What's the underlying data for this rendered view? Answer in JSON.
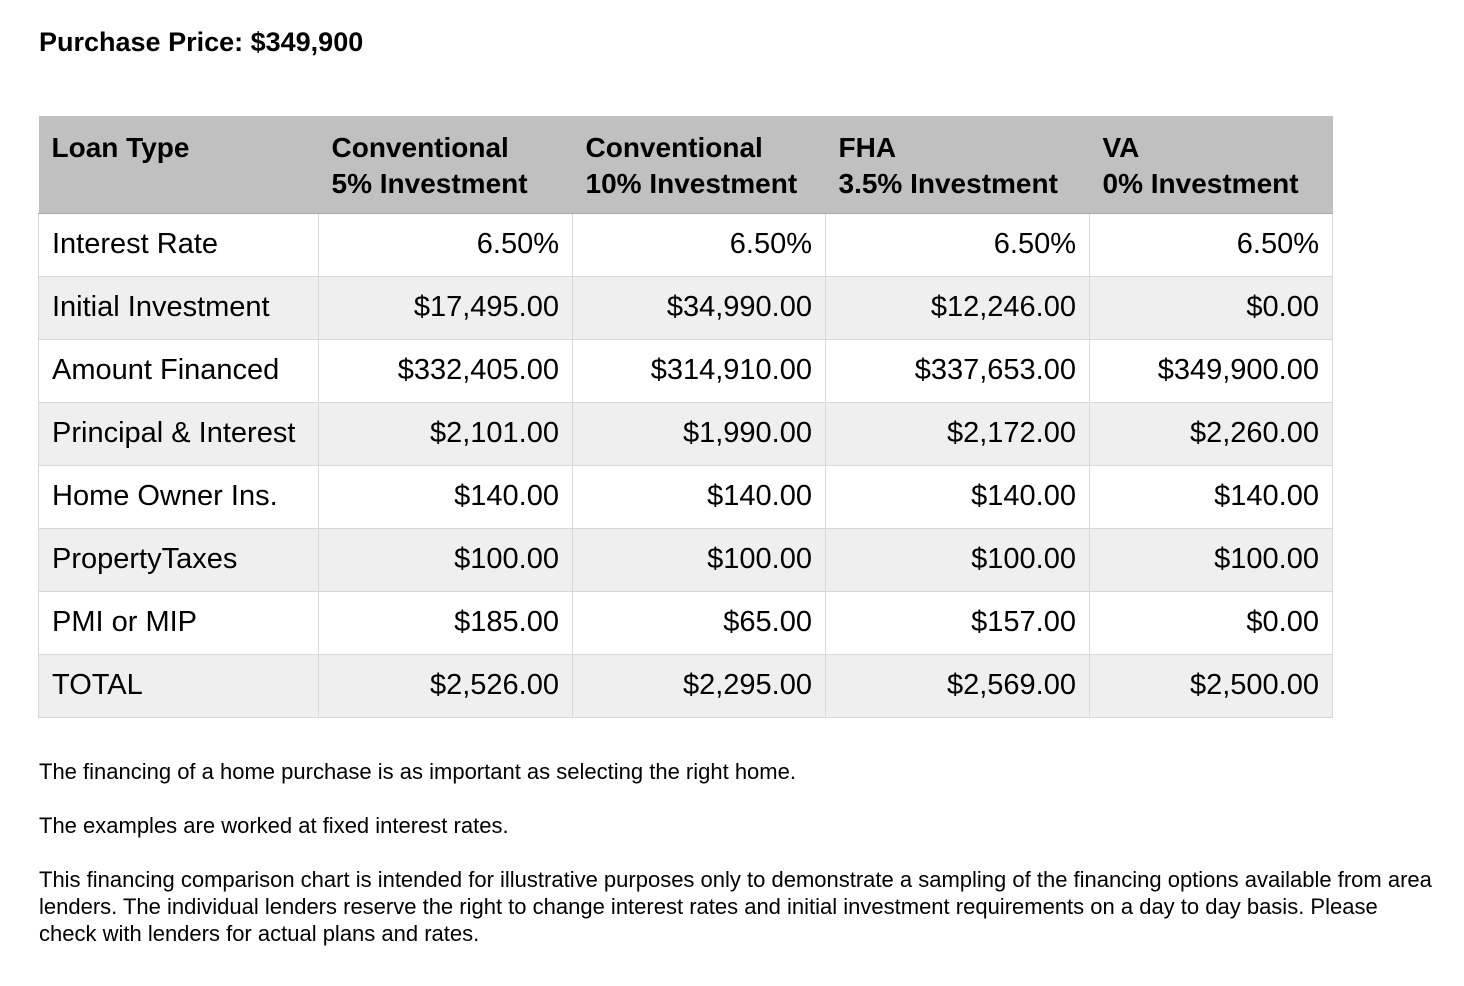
{
  "title": "Purchase Price: $349,900",
  "table": {
    "headers": [
      [
        "Loan Type"
      ],
      [
        "Conventional",
        "5% Investment"
      ],
      [
        "Conventional",
        "10% Investment"
      ],
      [
        "FHA",
        "3.5% Investment"
      ],
      [
        "VA",
        "0% Investment"
      ]
    ],
    "rows": [
      {
        "label": "Interest Rate",
        "values": [
          "6.50%",
          "6.50%",
          "6.50%",
          "6.50%"
        ]
      },
      {
        "label": "Initial Investment",
        "values": [
          "$17,495.00",
          "$34,990.00",
          "$12,246.00",
          "$0.00"
        ]
      },
      {
        "label": "Amount Financed",
        "values": [
          "$332,405.00",
          "$314,910.00",
          "$337,653.00",
          "$349,900.00"
        ]
      },
      {
        "label": "Principal & Interest",
        "values": [
          "$2,101.00",
          "$1,990.00",
          "$2,172.00",
          "$2,260.00"
        ]
      },
      {
        "label": "Home Owner Ins.",
        "values": [
          "$140.00",
          "$140.00",
          "$140.00",
          "$140.00"
        ]
      },
      {
        "label": "PropertyTaxes",
        "values": [
          "$100.00",
          "$100.00",
          "$100.00",
          "$100.00"
        ]
      },
      {
        "label": "PMI or MIP",
        "values": [
          "$185.00",
          "$65.00",
          "$157.00",
          "$0.00"
        ]
      },
      {
        "label": "TOTAL",
        "values": [
          "$2,526.00",
          "$2,295.00",
          "$2,569.00",
          "$2,500.00"
        ]
      }
    ]
  },
  "notes": [
    "The financing of a home purchase is as important as selecting the right home.",
    "The examples are worked at fixed interest rates.",
    "This financing comparison chart is intended for illustrative purposes only to demonstrate a sampling of the financing options available from area lenders. The individual lenders reserve the right to change interest rates and initial investment requirements on a day to day basis. Please check with lenders for actual plans and rates."
  ],
  "colors": {
    "header_background": "#c0c0c0",
    "row_alt_background": "#efefef",
    "grid_line": "#d8d8d8"
  }
}
